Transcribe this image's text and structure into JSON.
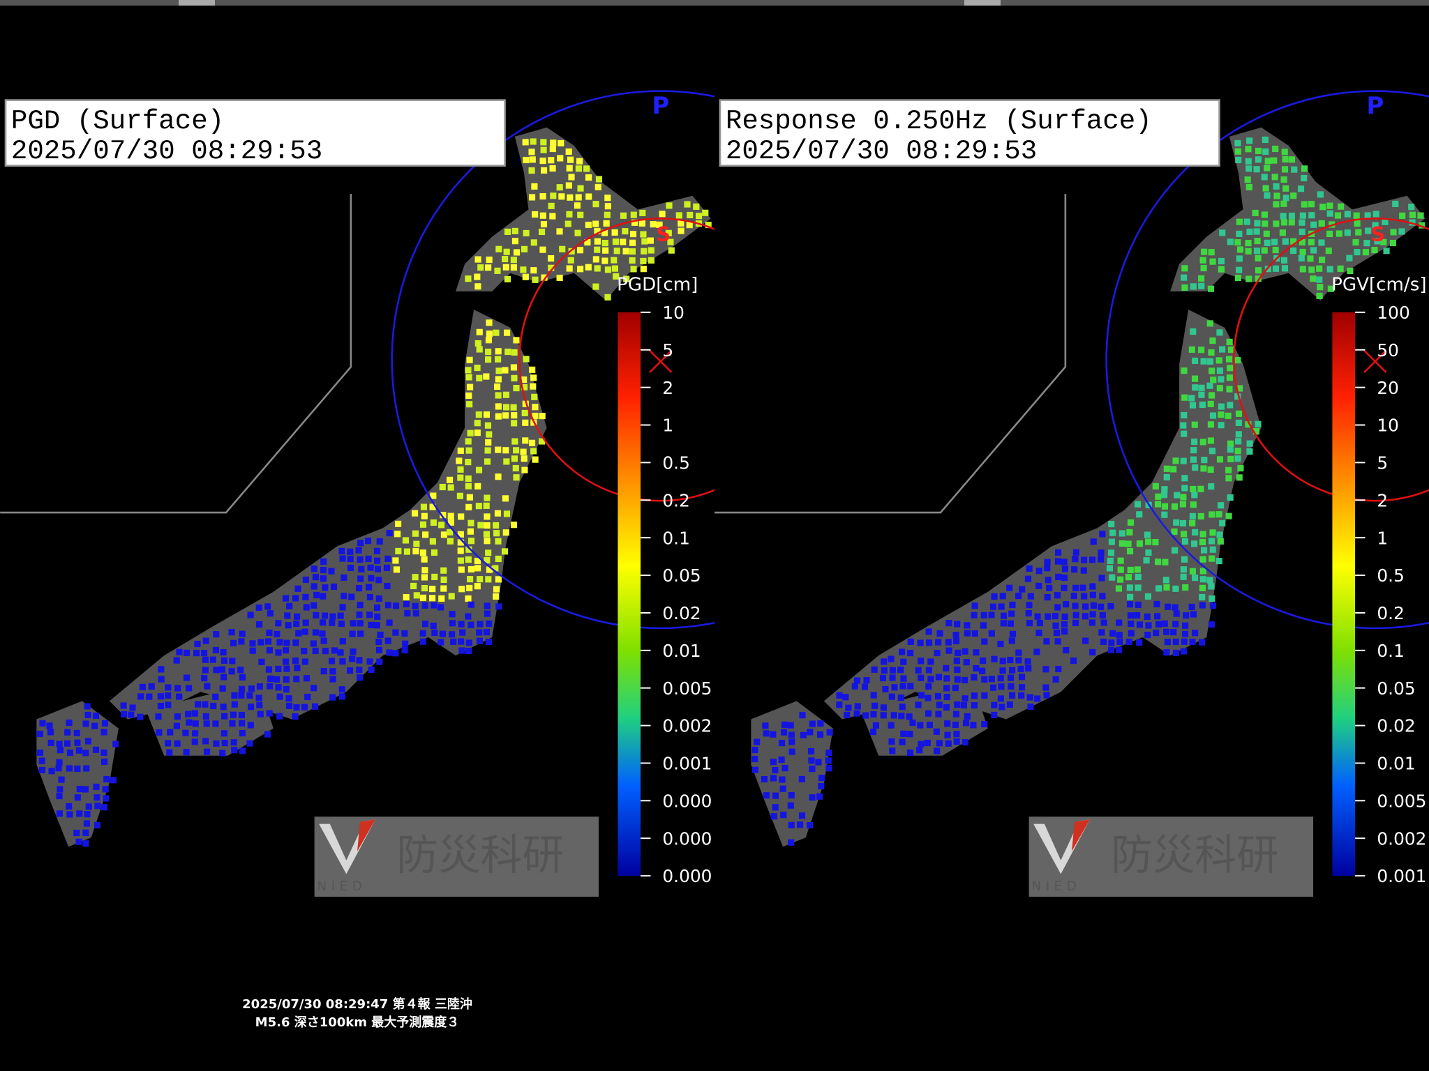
{
  "panels": [
    {
      "title": "PGD (Surface)",
      "timestamp": "2025/07/30 08:29:53",
      "p_label": "P",
      "s_label": "S",
      "legend_title": "PGD[cm]",
      "legend_labels": [
        "10",
        "5",
        "2",
        "1",
        "0.5",
        "0.2",
        "0.1",
        "0.05",
        "0.02",
        "0.01",
        "0.005",
        "0.002",
        "0.001",
        "0.000",
        "0.000",
        "0.000"
      ],
      "logo_text": "防災科研",
      "logo_sub": "NIED"
    },
    {
      "title": "Response 0.250Hz (Surface)",
      "timestamp": "2025/07/30 08:29:53",
      "p_label": "P",
      "s_label": "S",
      "legend_title": "PGV[cm/s]",
      "legend_labels": [
        "100",
        "50",
        "20",
        "10",
        "5",
        "2",
        "1",
        "0.5",
        "0.2",
        "0.1",
        "0.05",
        "0.02",
        "0.01",
        "0.005",
        "0.002",
        "0.001"
      ],
      "logo_text": "防災科研",
      "logo_sub": "NIED"
    }
  ],
  "footer": {
    "line1": "2025/07/30 08:29:47 第４報 三陸沖",
    "line2": "M5.6 深さ100km 最大予測震度３"
  }
}
